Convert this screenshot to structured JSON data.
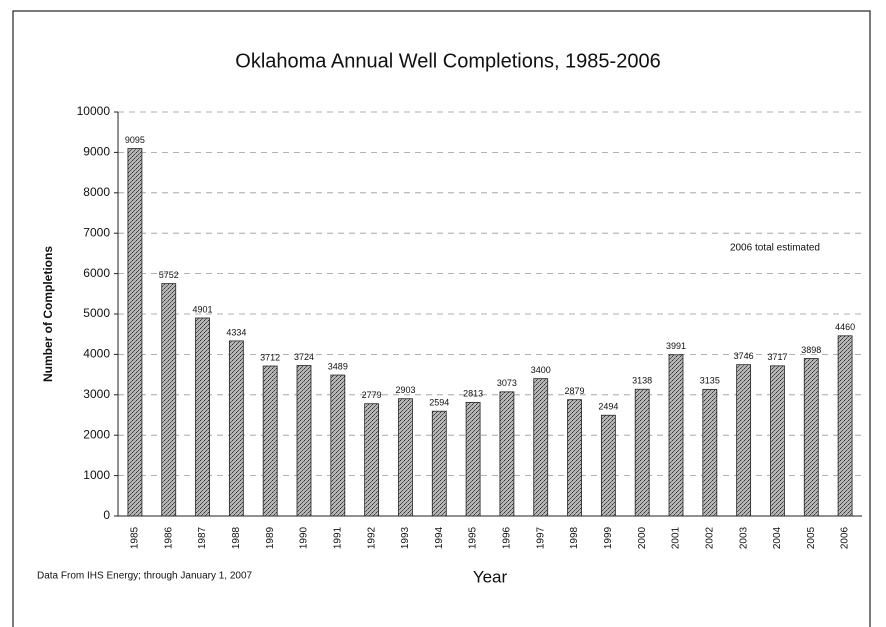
{
  "chart_data": {
    "type": "bar",
    "title": "Oklahoma Annual Well Completions, 1985-2006",
    "x_label": "Year",
    "y_label": "Number of Completions",
    "annotation": "2006 total estimated",
    "footnote": "Data From IHS Energy; through January 1, 2007",
    "categories": [
      "1985",
      "1986",
      "1987",
      "1988",
      "1989",
      "1990",
      "1991",
      "1992",
      "1993",
      "1994",
      "1995",
      "1996",
      "1997",
      "1998",
      "1999",
      "2000",
      "2001",
      "2002",
      "2003",
      "2004",
      "2005",
      "2006"
    ],
    "values": [
      9095,
      5752,
      4901,
      4334,
      3712,
      3724,
      3489,
      2779,
      2903,
      2594,
      2813,
      3073,
      3400,
      2879,
      2494,
      3138,
      3991,
      3135,
      3746,
      3717,
      3898,
      4460
    ],
    "color": "#8c8c8c",
    "ylim": [
      0,
      10000
    ],
    "yticks": [
      0,
      1000,
      2000,
      3000,
      4000,
      5000,
      6000,
      7000,
      8000,
      9000,
      10000
    ],
    "grid": true
  }
}
